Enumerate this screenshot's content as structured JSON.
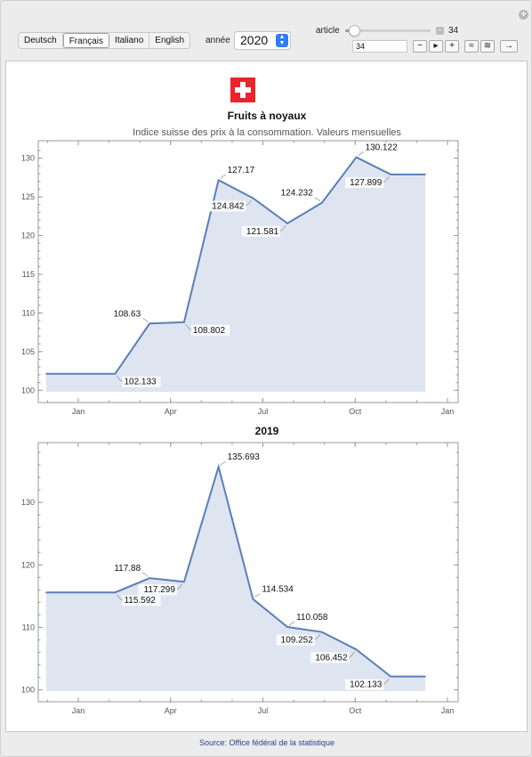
{
  "controls": {
    "languages": [
      {
        "label": "Deutsch",
        "selected": false
      },
      {
        "label": "Français",
        "selected": true
      },
      {
        "label": "Italiano",
        "selected": false
      },
      {
        "label": "English",
        "selected": false
      }
    ],
    "year_label": "année",
    "year_value": "2020",
    "article_label": "article",
    "article_value": "34",
    "article_input_value": "34",
    "slider_fraction": 0.1,
    "buttons": {
      "minus": "−",
      "play": "▸",
      "plus": "+",
      "faster": "≈",
      "slower": "≋",
      "next": "→"
    },
    "corner_icon": "+"
  },
  "header": {
    "flag_icon": "swiss-flag-icon",
    "title": "Fruits à noyaux",
    "subtitle": "Indice suisse des prix à la consommation. Valeurs mensuelles"
  },
  "chart_data": [
    {
      "type": "area",
      "title": "",
      "x_ticks": [
        "Jan",
        "Apr",
        "Jul",
        "Oct",
        "Jan"
      ],
      "y_ticks": [
        100,
        105,
        110,
        115,
        120,
        125,
        130
      ],
      "ylim": [
        99.8,
        131.8
      ],
      "x": [
        "2020-01",
        "2020-02",
        "2020-03",
        "2020-04",
        "2020-05",
        "2020-06",
        "2020-07",
        "2020-08",
        "2020-09",
        "2020-10",
        "2020-11",
        "2020-12"
      ],
      "values": [
        102.133,
        102.133,
        102.133,
        108.63,
        108.802,
        127.17,
        124.842,
        121.581,
        124.232,
        130.122,
        127.899,
        127.899
      ],
      "labels": [
        {
          "text": "102.133",
          "index": 2,
          "pos": "below-right"
        },
        {
          "text": "108.63",
          "index": 3,
          "pos": "above-left"
        },
        {
          "text": "108.802",
          "index": 4,
          "pos": "below-right"
        },
        {
          "text": "127.17",
          "index": 5,
          "pos": "above-right"
        },
        {
          "text": "124.842",
          "index": 6,
          "pos": "below-left"
        },
        {
          "text": "121.581",
          "index": 7,
          "pos": "below-left"
        },
        {
          "text": "124.232",
          "index": 8,
          "pos": "above-left"
        },
        {
          "text": "130.122",
          "index": 9,
          "pos": "above-right"
        },
        {
          "text": "127.899",
          "index": 10,
          "pos": "below-left"
        }
      ],
      "line_color": "#5b7fb8",
      "fill_color": "#dfe5f0"
    },
    {
      "type": "area",
      "title": "2019",
      "x_ticks": [
        "Jan",
        "Apr",
        "Jul",
        "Oct",
        "Jan"
      ],
      "y_ticks": [
        100,
        110,
        120,
        130
      ],
      "ylim": [
        99.8,
        139
      ],
      "x": [
        "2019-01",
        "2019-02",
        "2019-03",
        "2019-04",
        "2019-05",
        "2019-06",
        "2019-07",
        "2019-08",
        "2019-09",
        "2019-10",
        "2019-11",
        "2019-12"
      ],
      "values": [
        115.592,
        115.592,
        115.592,
        117.88,
        117.299,
        135.693,
        114.534,
        110.058,
        109.252,
        106.452,
        102.133,
        102.133
      ],
      "labels": [
        {
          "text": "117.88",
          "index": 3,
          "pos": "above-left"
        },
        {
          "text": "117.299",
          "index": 4,
          "pos": "below-left"
        },
        {
          "text": "115.592",
          "index": 2,
          "pos": "below-right"
        },
        {
          "text": "135.693",
          "index": 5,
          "pos": "above-right"
        },
        {
          "text": "114.534",
          "index": 6,
          "pos": "above-right"
        },
        {
          "text": "110.058",
          "index": 7,
          "pos": "above-right"
        },
        {
          "text": "109.252",
          "index": 8,
          "pos": "below-left"
        },
        {
          "text": "106.452",
          "index": 9,
          "pos": "below-left"
        },
        {
          "text": "102.133",
          "index": 10,
          "pos": "below-left"
        }
      ],
      "line_color": "#5b7fb8",
      "fill_color": "#dfe5f0"
    }
  ],
  "footer": {
    "source": "Source: Office fédéral de la statistique"
  }
}
